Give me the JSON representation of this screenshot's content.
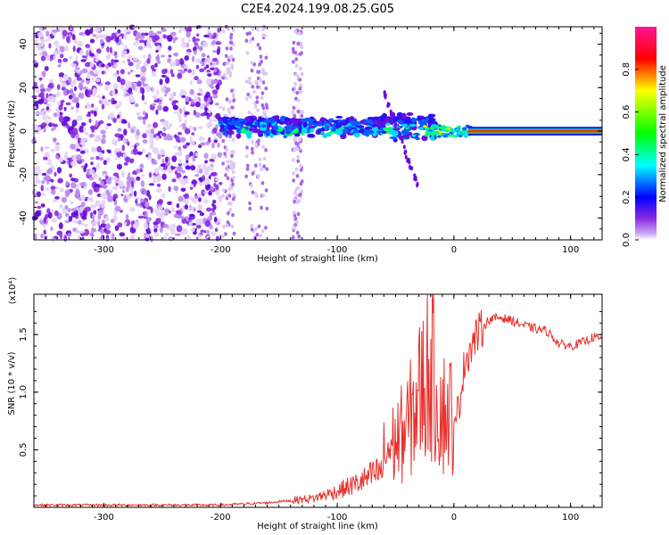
{
  "title": "C2E4.2024.199.08.25.G05",
  "chart_data": [
    {
      "type": "heatmap",
      "xlabel": "Height of straight line (km)",
      "ylabel": "Frequency (Hz)",
      "xlim": [
        -360,
        127
      ],
      "ylim": [
        -50,
        48
      ],
      "xticks": [
        -300,
        -200,
        -100,
        0,
        100
      ],
      "yticks": [
        -40,
        -20,
        0,
        20,
        40
      ],
      "grid": false,
      "colorbar": {
        "label": "Normalized spectral amplitude",
        "range": [
          0.0,
          1.0
        ],
        "ticks": [
          0.0,
          0.2,
          0.4,
          0.6,
          0.8
        ],
        "colormap": [
          "#ffffff",
          "#8a2be2",
          "#0000ff",
          "#00ffff",
          "#00ff00",
          "#ffff00",
          "#ff0000",
          "#ff1493"
        ]
      },
      "regions": [
        {
          "x": [
            -360,
            -200
          ],
          "freq_spread": 48,
          "amplitude": 0.05
        },
        {
          "x": [
            -200,
            -130
          ],
          "freq_spread": 48,
          "amplitude": 0.02
        },
        {
          "x": [
            -200,
            -20
          ],
          "freq_spread": 6,
          "amplitude": 0.35
        },
        {
          "x": [
            -20,
            127
          ],
          "freq_spread": 1,
          "amplitude": 0.95
        }
      ]
    },
    {
      "type": "line",
      "xlabel": "Height of straight line (km)",
      "ylabel": "SNR (10 * v/v)",
      "y_multiplier": "(x10⁴)",
      "xlim": [
        -360,
        127
      ],
      "ylim": [
        0,
        1.85
      ],
      "xticks": [
        -300,
        -200,
        -100,
        0,
        100
      ],
      "yticks": [
        0.5,
        1.0,
        1.5
      ],
      "ytick_labels": [
        "0.5",
        "1.0",
        "1.5"
      ],
      "color": "#e8312d",
      "x": [
        -360,
        -300,
        -250,
        -200,
        -160,
        -140,
        -120,
        -100,
        -80,
        -60,
        -40,
        -30,
        -20,
        -10,
        0,
        10,
        20,
        30,
        40,
        50,
        60,
        70,
        80,
        90,
        100,
        110,
        120,
        127
      ],
      "y": [
        0.02,
        0.02,
        0.02,
        0.02,
        0.04,
        0.06,
        0.08,
        0.14,
        0.22,
        0.33,
        0.5,
        0.7,
        0.9,
        0.6,
        0.6,
        1.3,
        1.5,
        1.63,
        1.65,
        1.62,
        1.58,
        1.55,
        1.53,
        1.42,
        1.4,
        1.43,
        1.48,
        1.45
      ]
    }
  ]
}
